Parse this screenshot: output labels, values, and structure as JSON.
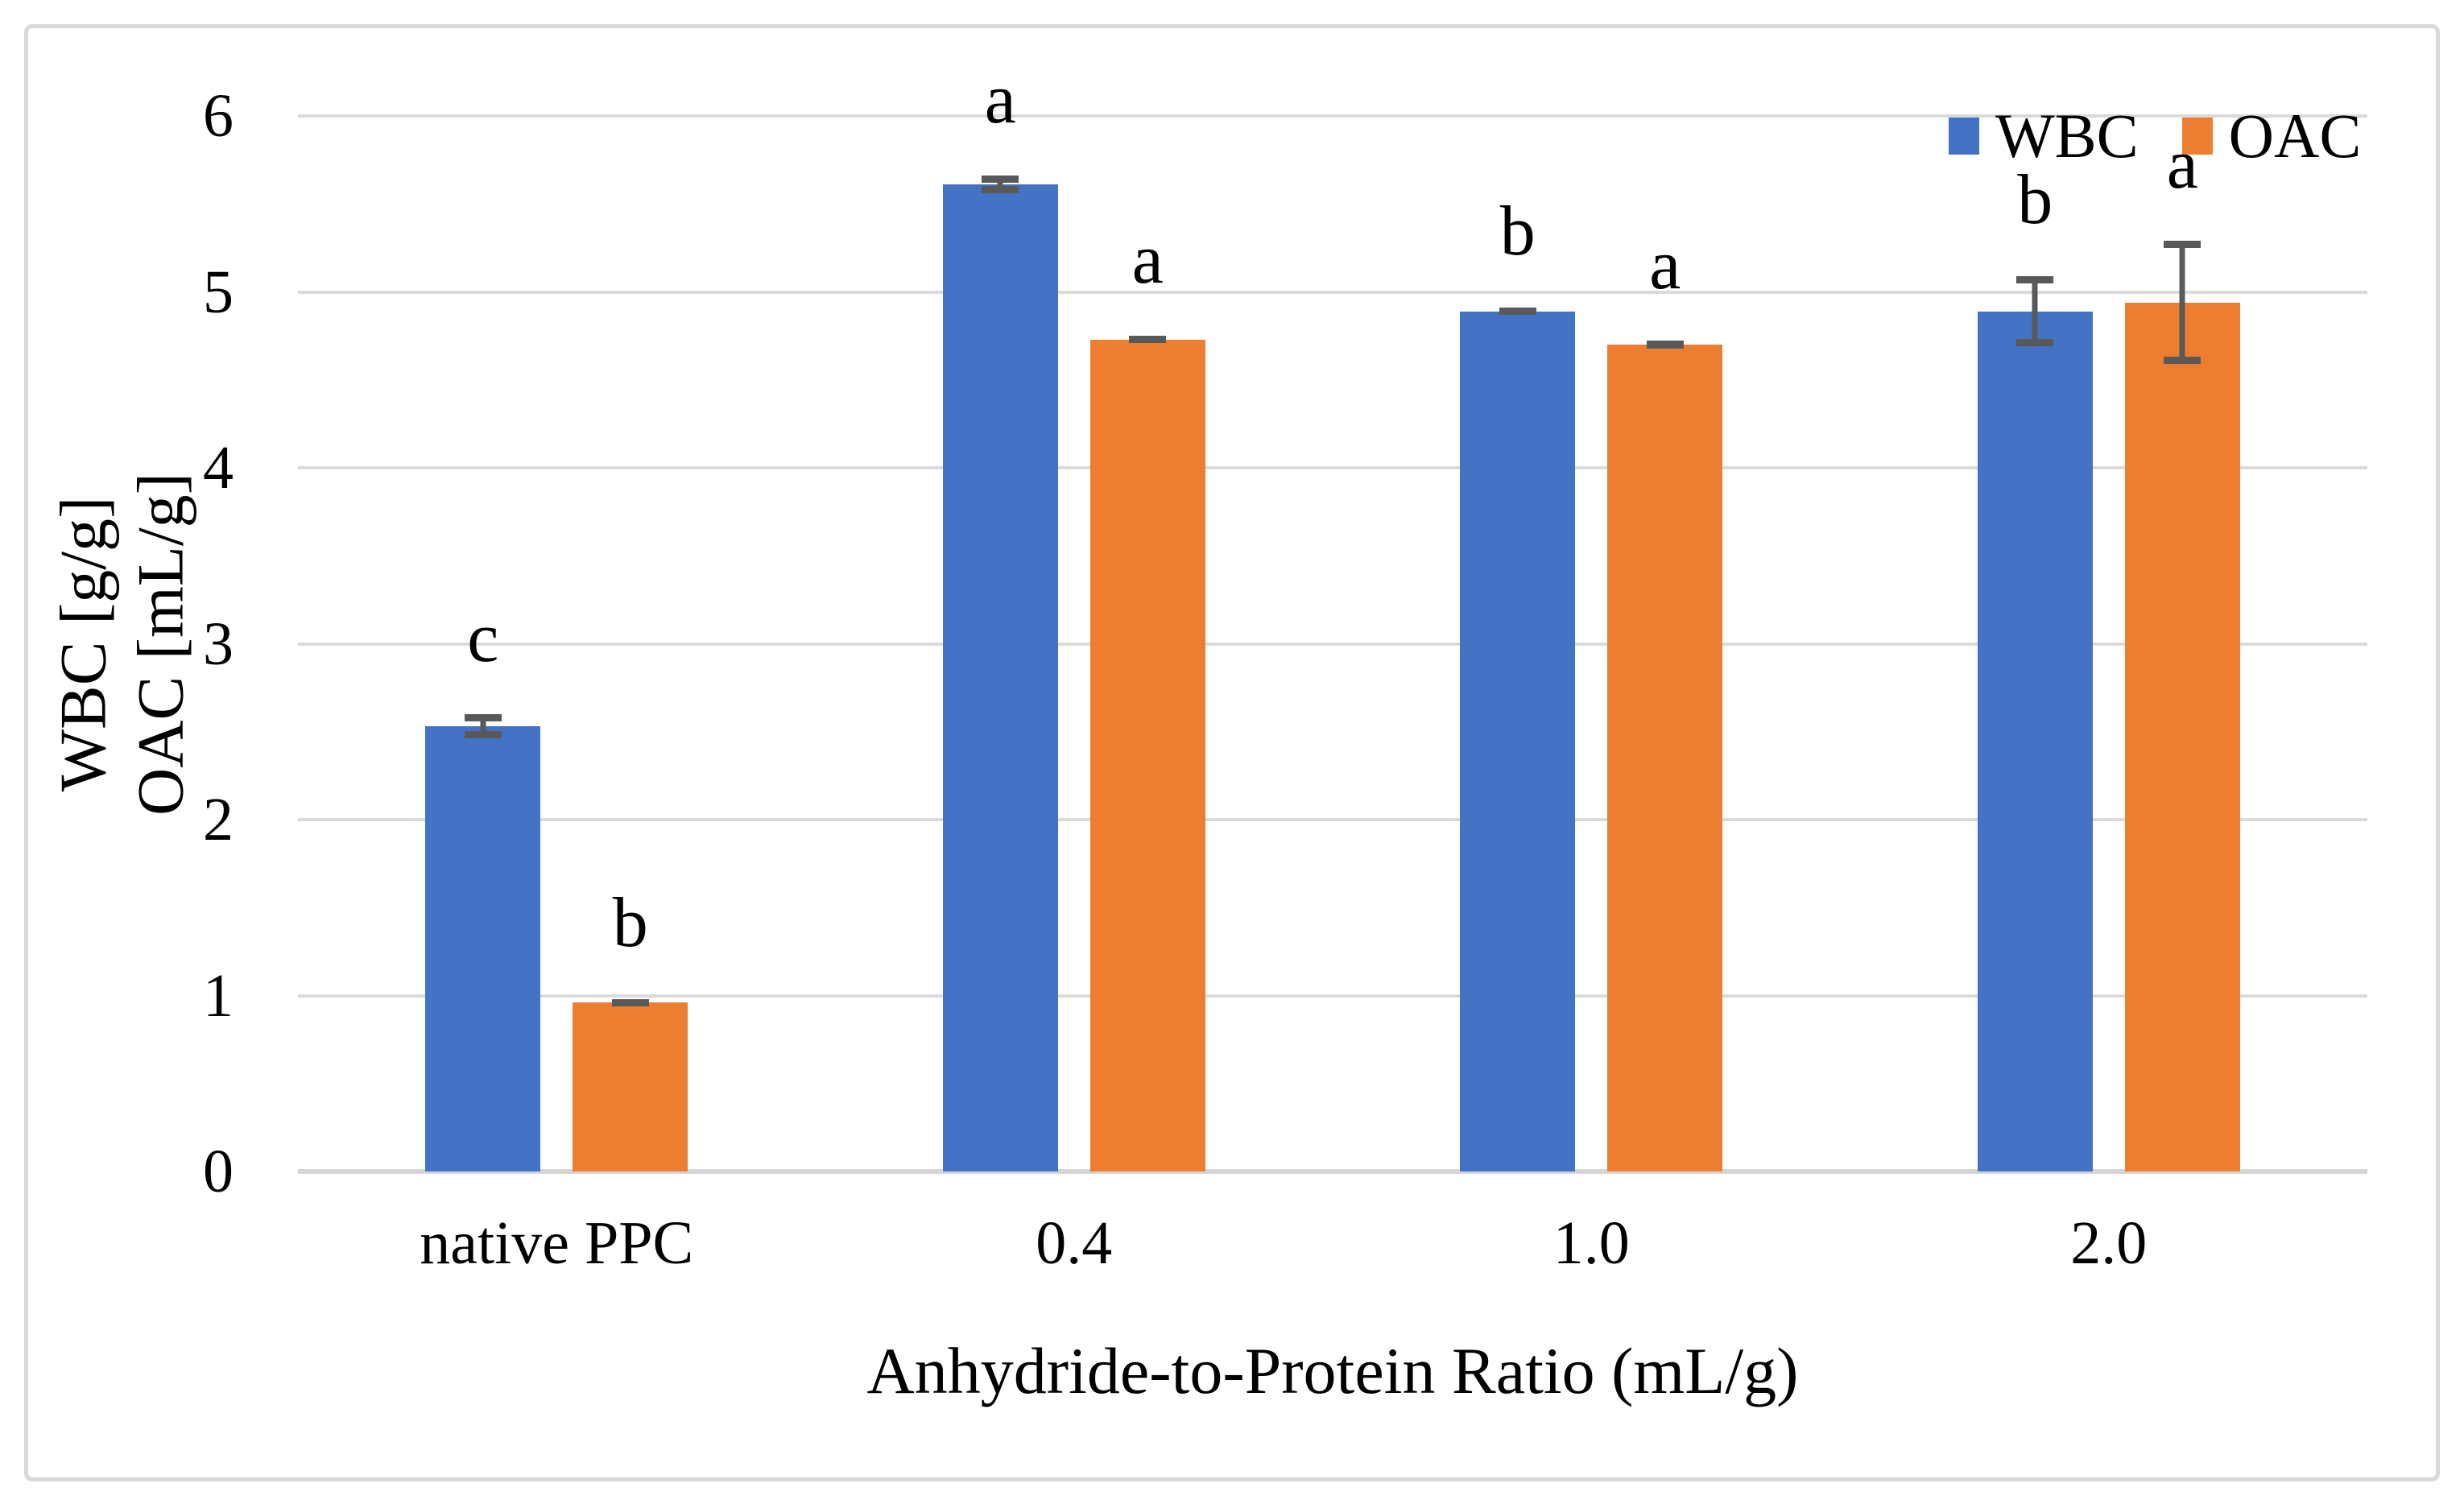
{
  "figure": {
    "xlabel": "Anhydride-to-Protein Ratio (mL/g)",
    "ylabel_line1": "WBC [g/g]",
    "ylabel_line2": "OAC [mL/g]"
  },
  "legend": {
    "items": [
      {
        "label": "WBC",
        "color": "#4472C4"
      },
      {
        "label": "OAC",
        "color": "#ED7D31"
      }
    ]
  },
  "chart_data": {
    "type": "bar",
    "title": "",
    "categories": [
      "native PPC",
      "0.4",
      "1.0",
      "2.0"
    ],
    "series": [
      {
        "name": "WBC",
        "color": "#4472C4",
        "values": [
          2.53,
          5.61,
          4.89,
          4.89
        ],
        "errors": [
          0.07,
          0.05,
          0.02,
          0.2
        ],
        "letters": [
          "c",
          "a",
          "b",
          "b"
        ]
      },
      {
        "name": "OAC",
        "color": "#ED7D31",
        "values": [
          0.96,
          4.73,
          4.7,
          4.94
        ],
        "errors": [
          0.02,
          0.02,
          0.02,
          0.35
        ],
        "letters": [
          "b",
          "a",
          "a",
          "a"
        ]
      }
    ],
    "xlabel": "Anhydride-to-Protein Ratio (mL/g)",
    "ylabel": "WBC [g/g] OAC [mL/g]",
    "ylim": [
      0,
      6
    ],
    "yticks": [
      0,
      1,
      2,
      3,
      4,
      5,
      6
    ],
    "grid": true,
    "legend_position": "top-right",
    "error_bar_color": "#595959",
    "gridline_color": "#DADADA"
  }
}
